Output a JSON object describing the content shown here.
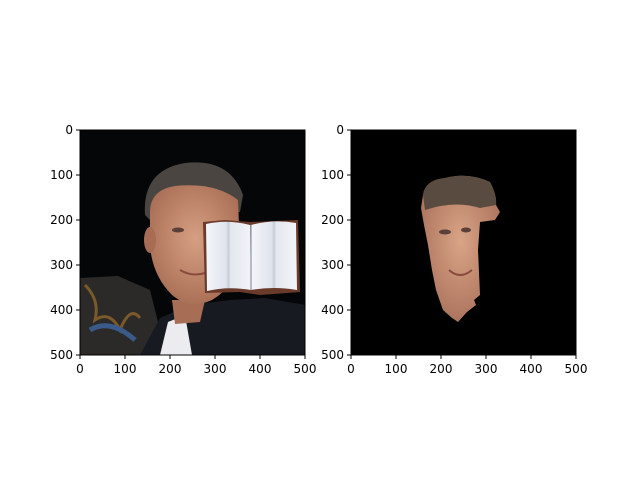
{
  "figure": {
    "background": "#ffffff",
    "panels": [
      {
        "id": "left",
        "description_icon": "face-photo-with-book-occluder",
        "x_ticks": [
          "0",
          "100",
          "200",
          "300",
          "400",
          "500"
        ],
        "y_ticks": [
          "0",
          "100",
          "200",
          "300",
          "400",
          "500"
        ],
        "colors": {
          "background": "#050608",
          "skin": "#c08a6e",
          "jacket": "#181a22",
          "shirt": "#ececf0",
          "book_page": "#eef0f5"
        }
      },
      {
        "id": "right",
        "description_icon": "segmented-face-mask",
        "x_ticks": [
          "0",
          "100",
          "200",
          "300",
          "400",
          "500"
        ],
        "y_ticks": [
          "0",
          "100",
          "200",
          "300",
          "400",
          "500"
        ],
        "colors": {
          "background": "#000000",
          "skin": "#c6906f"
        }
      }
    ]
  },
  "chart_data": [
    {
      "type": "image",
      "title": "",
      "xlabel": "",
      "ylabel": "",
      "xlim": [
        0,
        500
      ],
      "ylim": [
        500,
        0
      ],
      "x_ticks": [
        0,
        100,
        200,
        300,
        400,
        500
      ],
      "y_ticks": [
        0,
        100,
        200,
        300,
        400,
        500
      ]
    },
    {
      "type": "image",
      "title": "",
      "xlabel": "",
      "ylabel": "",
      "xlim": [
        0,
        500
      ],
      "ylim": [
        500,
        0
      ],
      "x_ticks": [
        0,
        100,
        200,
        300,
        400,
        500
      ],
      "y_ticks": [
        0,
        100,
        200,
        300,
        400,
        500
      ]
    }
  ]
}
